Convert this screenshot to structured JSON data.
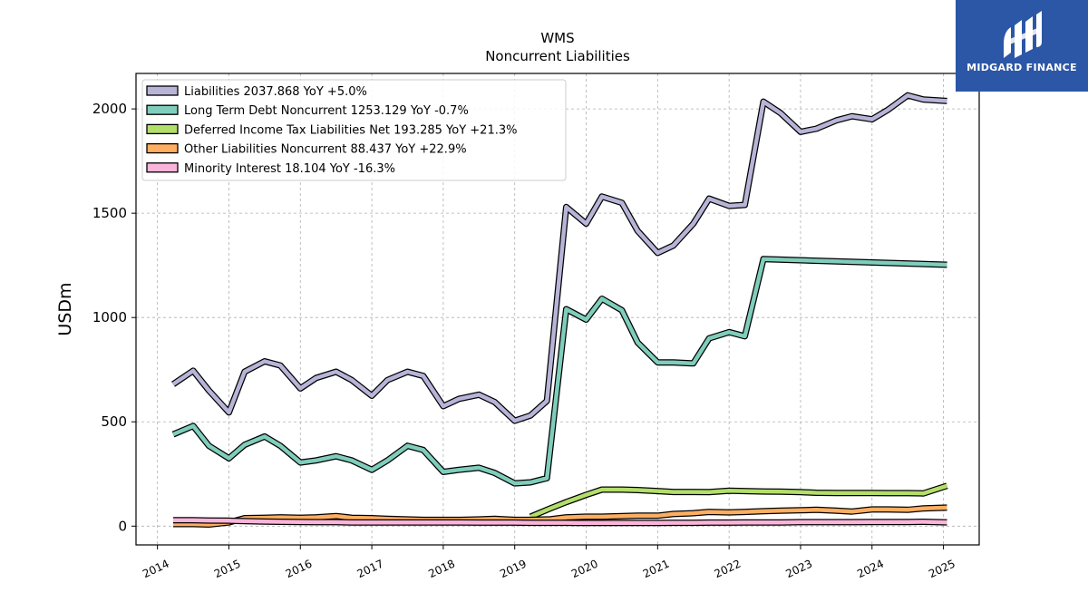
{
  "brand": {
    "name": "MIDGARD FINANCE",
    "color": "#2b57a6"
  },
  "chart_data": {
    "type": "line",
    "title": "WMS",
    "subtitle": "Noncurrent  Liabilities",
    "xlabel": "",
    "ylabel": "USDm",
    "xlim": [
      2013.7,
      2025.5
    ],
    "ylim": [
      -90,
      2170
    ],
    "x_ticks": [
      "2014",
      "2015",
      "2016",
      "2017",
      "2018",
      "2019",
      "2020",
      "2021",
      "2022",
      "2023",
      "2024",
      "2025"
    ],
    "y_ticks": [
      0,
      500,
      1000,
      1500,
      2000
    ],
    "grid": true,
    "legend_position": "top-left",
    "series": [
      {
        "name": "Liabilities  2037.868 YoY +5.0%",
        "color": "#b7b4d8",
        "x": [
          2014.22,
          2014.5,
          2014.72,
          2015.0,
          2015.22,
          2015.5,
          2015.72,
          2016.0,
          2016.22,
          2016.5,
          2016.72,
          2017.0,
          2017.22,
          2017.5,
          2017.72,
          2018.0,
          2018.22,
          2018.5,
          2018.72,
          2019.0,
          2019.22,
          2019.45,
          2019.72,
          2020.0,
          2020.22,
          2020.5,
          2020.72,
          2021.0,
          2021.22,
          2021.5,
          2021.72,
          2022.0,
          2022.22,
          2022.48,
          2022.72,
          2023.0,
          2023.22,
          2023.5,
          2023.72,
          2024.0,
          2024.22,
          2024.5,
          2024.72,
          2025.05
        ],
        "y": [
          680,
          745,
          650,
          545,
          740,
          790,
          770,
          660,
          710,
          740,
          700,
          625,
          700,
          740,
          720,
          575,
          610,
          630,
          595,
          505,
          530,
          600,
          1530,
          1450,
          1580,
          1550,
          1415,
          1310,
          1345,
          1450,
          1570,
          1535,
          1540,
          2035,
          1980,
          1890,
          1905,
          1945,
          1965,
          1950,
          1995,
          2065,
          2045,
          2037.868
        ]
      },
      {
        "name": "Long Term Debt Noncurrent  1253.129 YoY -0.7%",
        "color": "#7fcdbb",
        "x": [
          2014.22,
          2014.5,
          2014.72,
          2015.0,
          2015.22,
          2015.5,
          2015.72,
          2016.0,
          2016.22,
          2016.5,
          2016.72,
          2017.0,
          2017.22,
          2017.5,
          2017.72,
          2018.0,
          2018.22,
          2018.5,
          2018.72,
          2019.0,
          2019.22,
          2019.45,
          2019.72,
          2020.0,
          2020.22,
          2020.5,
          2020.72,
          2021.0,
          2021.22,
          2021.5,
          2021.72,
          2022.0,
          2022.22,
          2022.48,
          2025.05
        ],
        "y": [
          440,
          480,
          385,
          325,
          390,
          430,
          385,
          305,
          315,
          335,
          315,
          270,
          315,
          385,
          365,
          260,
          270,
          280,
          255,
          205,
          210,
          230,
          1040,
          990,
          1090,
          1035,
          880,
          785,
          785,
          780,
          900,
          930,
          910,
          1280,
          1253.129
        ]
      },
      {
        "name": "Deferred Income Tax Liabilities Net  193.285 YoY +21.3%",
        "color": "#b3de69",
        "x": [
          2019.22,
          2019.5,
          2019.72,
          2020.0,
          2020.22,
          2020.5,
          2020.72,
          2021.0,
          2021.22,
          2021.5,
          2021.72,
          2022.0,
          2022.22,
          2022.5,
          2022.72,
          2023.0,
          2023.22,
          2023.5,
          2023.72,
          2024.0,
          2024.22,
          2024.5,
          2024.72,
          2025.05
        ],
        "y": [
          45,
          85,
          115,
          150,
          175,
          175,
          173,
          168,
          164,
          164,
          163,
          170,
          168,
          166,
          165,
          163,
          160,
          159,
          159,
          159,
          158,
          158,
          157,
          193.285
        ]
      },
      {
        "name": "Other Liabilities Noncurrent  88.437 YoY +22.9%",
        "color": "#fdae61",
        "x": [
          2014.22,
          2014.5,
          2014.72,
          2015.0,
          2015.22,
          2015.5,
          2015.72,
          2016.0,
          2016.22,
          2016.5,
          2016.72,
          2017.0,
          2017.22,
          2017.5,
          2017.72,
          2018.0,
          2018.22,
          2018.5,
          2018.72,
          2019.0,
          2019.22,
          2019.5,
          2019.72,
          2020.0,
          2020.22,
          2020.5,
          2020.72,
          2021.0,
          2021.22,
          2021.5,
          2021.72,
          2022.0,
          2022.22,
          2022.5,
          2022.72,
          2023.0,
          2023.22,
          2023.5,
          2023.72,
          2024.0,
          2024.22,
          2024.5,
          2024.72,
          2025.05
        ],
        "y": [
          10,
          10,
          8,
          18,
          38,
          40,
          42,
          40,
          42,
          48,
          40,
          38,
          35,
          32,
          30,
          30,
          30,
          32,
          35,
          30,
          30,
          33,
          42,
          45,
          45,
          48,
          50,
          50,
          58,
          62,
          68,
          66,
          68,
          72,
          74,
          76,
          78,
          74,
          70,
          80,
          80,
          78,
          85,
          88.437
        ]
      },
      {
        "name": "Minority Interest  18.104 YoY -16.3%",
        "color": "#fbb4d9",
        "x": [
          2014.22,
          2014.5,
          2014.72,
          2015.0,
          2015.22,
          2015.5,
          2015.72,
          2016.0,
          2016.22,
          2016.5,
          2016.72,
          2017.0,
          2017.22,
          2017.5,
          2017.72,
          2018.0,
          2018.22,
          2018.5,
          2018.72,
          2019.0,
          2019.22,
          2019.5,
          2019.72,
          2020.0,
          2020.22,
          2020.5,
          2020.72,
          2021.0,
          2021.22,
          2021.5,
          2021.72,
          2022.0,
          2022.22,
          2022.5,
          2022.72,
          2023.0,
          2023.22,
          2023.5,
          2023.72,
          2024.0,
          2024.22,
          2024.5,
          2024.72,
          2025.05
        ],
        "y": [
          28,
          28,
          27,
          26,
          24,
          22,
          21,
          20,
          19,
          19,
          18,
          18,
          18,
          18,
          18,
          18,
          18,
          17,
          17,
          17,
          16,
          16,
          16,
          15,
          15,
          15,
          15,
          15,
          16,
          16,
          17,
          17,
          18,
          18,
          18,
          19,
          19,
          19,
          19,
          20,
          20,
          20,
          21,
          18.104
        ]
      }
    ]
  }
}
